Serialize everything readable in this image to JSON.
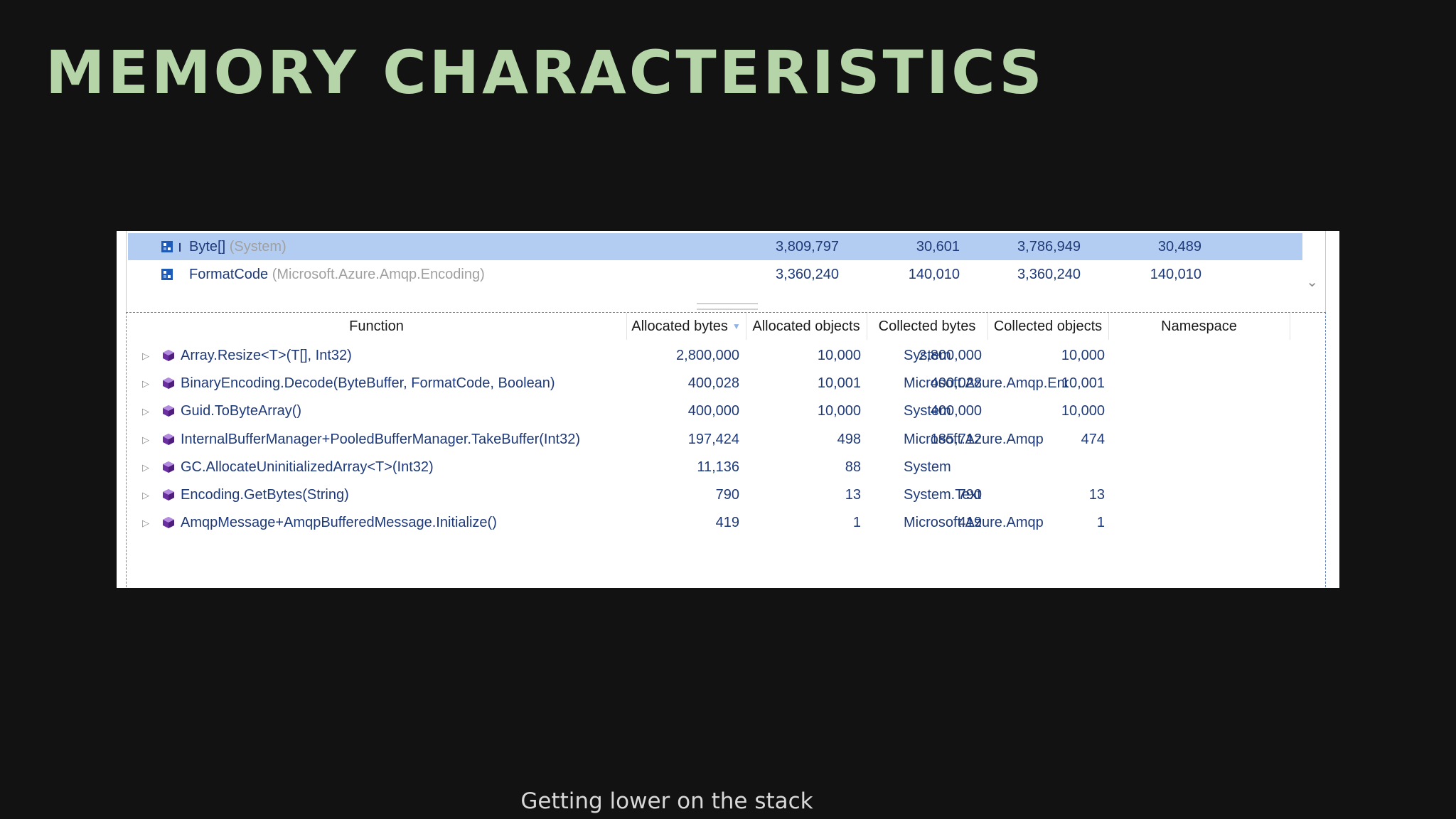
{
  "slide": {
    "title": "MEMORY CHARACTERISTICS",
    "caption": "Getting lower on the stack"
  },
  "types": [
    {
      "name": "Byte[]",
      "namespace": "(System)",
      "selected": true,
      "icon": "array-type-icon",
      "pin": "⭿",
      "allocated_bytes": "3,809,797",
      "allocated_objects": "30,601",
      "collected_bytes": "3,786,949",
      "collected_objects": "30,489"
    },
    {
      "name": "FormatCode",
      "namespace": "(Microsoft.Azure.Amqp.Encoding)",
      "selected": false,
      "icon": "value-type-icon",
      "pin": "",
      "allocated_bytes": "3,360,240",
      "allocated_objects": "140,010",
      "collected_bytes": "3,360,240",
      "collected_objects": "140,010"
    }
  ],
  "grid": {
    "columns": {
      "function": "Function",
      "allocated_bytes": "Allocated bytes",
      "allocated_objects": "Allocated objects",
      "collected_bytes": "Collected bytes",
      "collected_objects": "Collected objects",
      "namespace": "Namespace"
    },
    "sort_column": "allocated_bytes",
    "sort_icon": "sort-descending-icon",
    "rows": [
      {
        "function": "Array.Resize<T>(T[], Int32)",
        "allocated_bytes": "2,800,000",
        "allocated_objects": "10,000",
        "collected_bytes": "2,800,000",
        "collected_objects": "10,000",
        "namespace": "System"
      },
      {
        "function": "BinaryEncoding.Decode(ByteBuffer, FormatCode, Boolean)",
        "allocated_bytes": "400,028",
        "allocated_objects": "10,001",
        "collected_bytes": "400,028",
        "collected_objects": "10,001",
        "namespace": "Microsoft.Azure.Amqp.Encoding"
      },
      {
        "function": "Guid.ToByteArray()",
        "allocated_bytes": "400,000",
        "allocated_objects": "10,000",
        "collected_bytes": "400,000",
        "collected_objects": "10,000",
        "namespace": "System"
      },
      {
        "function": "InternalBufferManager+PooledBufferManager.TakeBuffer(Int32)",
        "allocated_bytes": "197,424",
        "allocated_objects": "498",
        "collected_bytes": "185,712",
        "collected_objects": "474",
        "namespace": "Microsoft.Azure.Amqp"
      },
      {
        "function": "GC.AllocateUninitializedArray<T>(Int32)",
        "allocated_bytes": "11,136",
        "allocated_objects": "88",
        "collected_bytes": "",
        "collected_objects": "",
        "namespace": "System"
      },
      {
        "function": "Encoding.GetBytes(String)",
        "allocated_bytes": "790",
        "allocated_objects": "13",
        "collected_bytes": "790",
        "collected_objects": "13",
        "namespace": "System.Text"
      },
      {
        "function": "AmqpMessage+AmqpBufferedMessage.Initialize()",
        "allocated_bytes": "419",
        "allocated_objects": "1",
        "collected_bytes": "419",
        "collected_objects": "1",
        "namespace": "Microsoft.Azure.Amqp"
      }
    ]
  },
  "colors": {
    "title": "#b5d4a8",
    "selection": "#b3cdf2",
    "link_text": "#1f3a78",
    "method_icon": "#6b2fa0"
  }
}
